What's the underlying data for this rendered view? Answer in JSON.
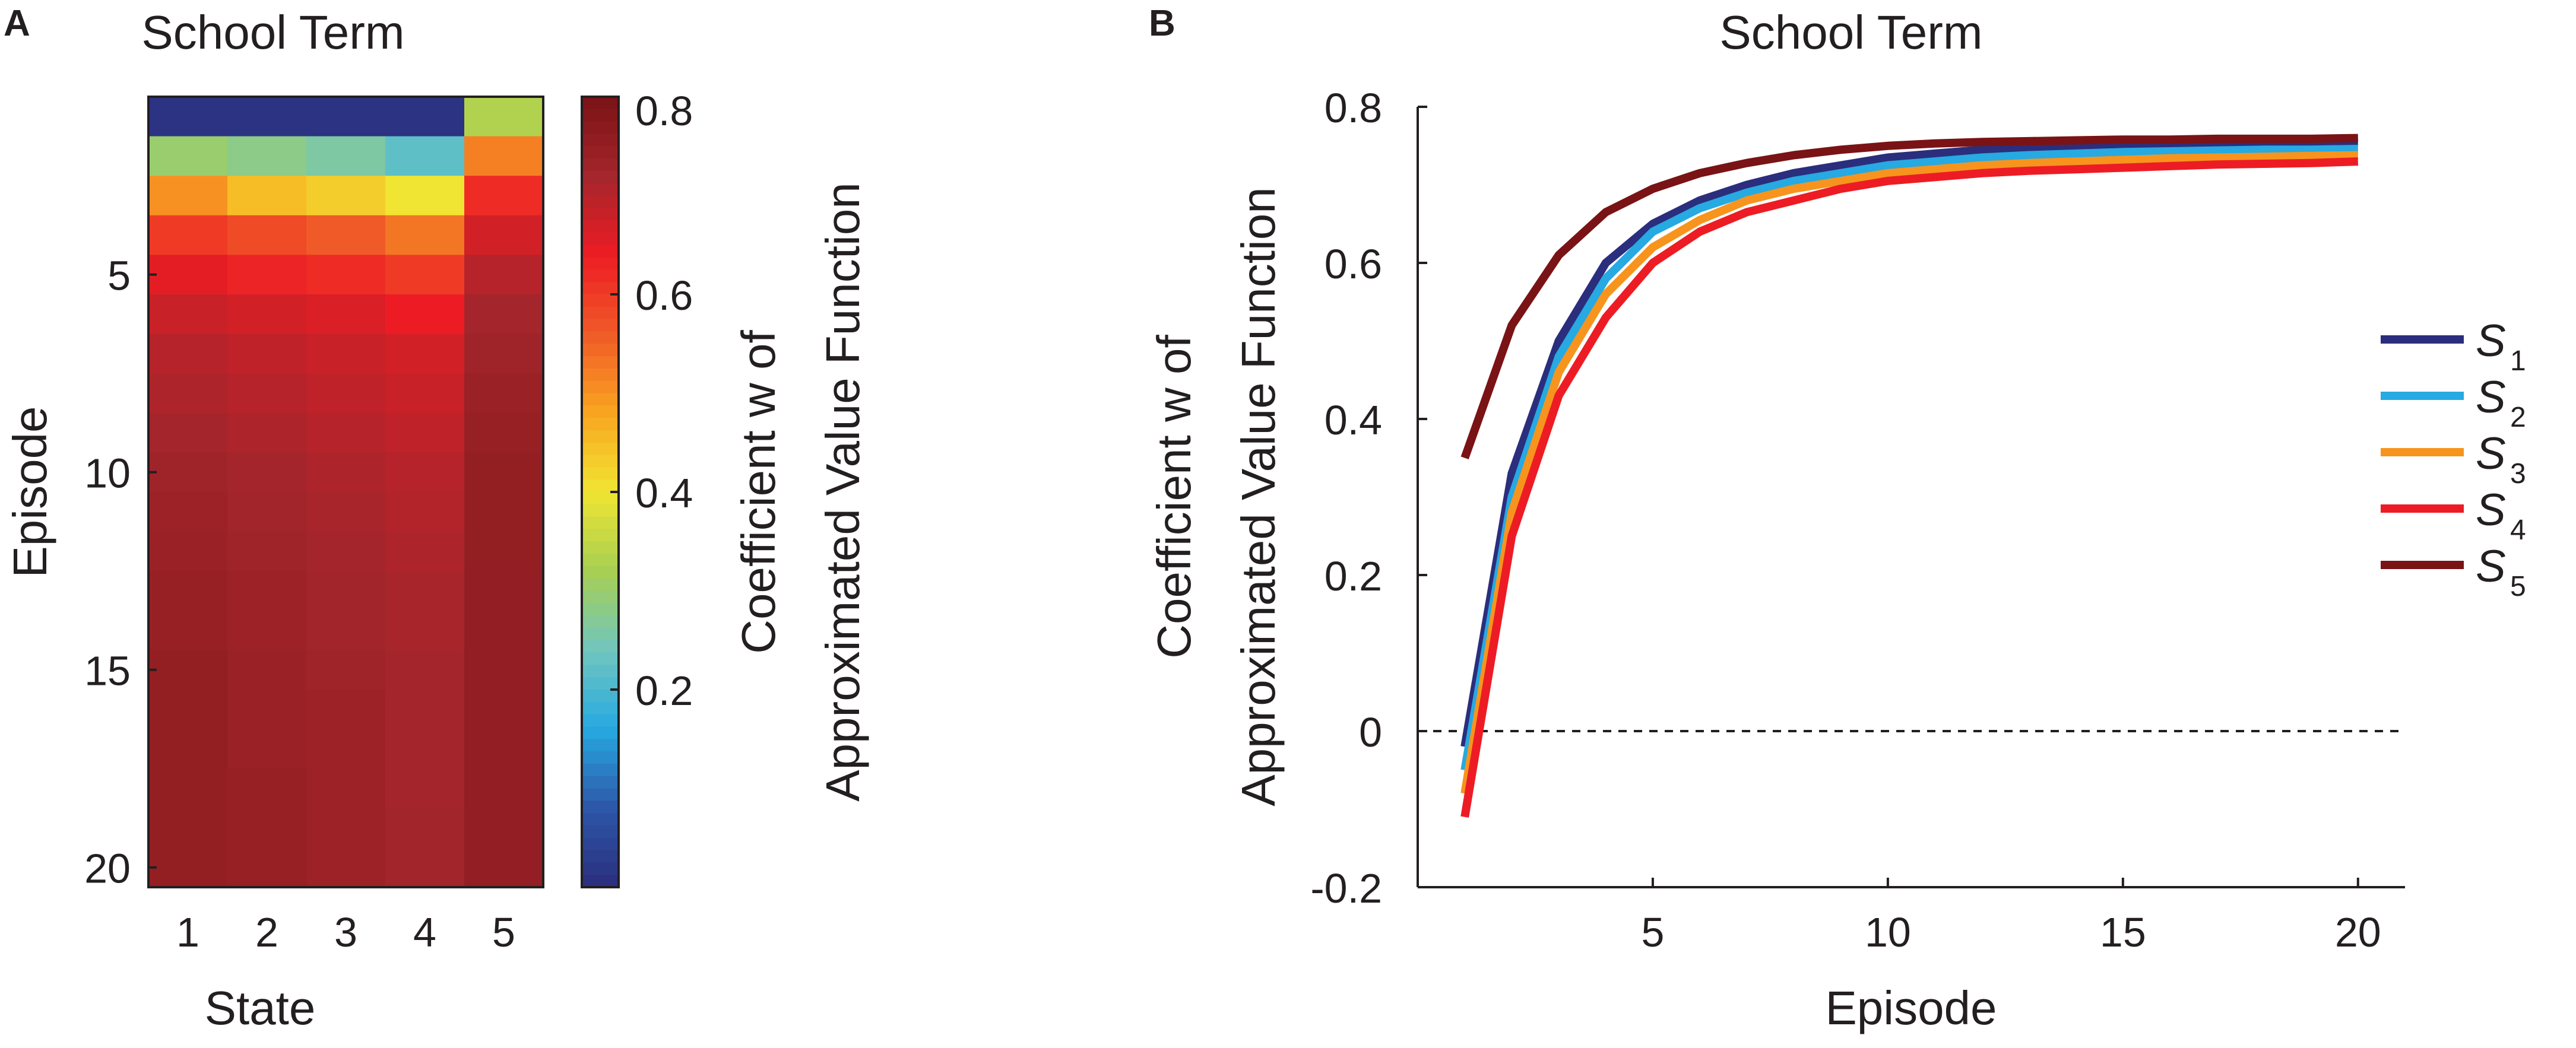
{
  "figure": {
    "panel_a_letter": "A",
    "panel_b_letter": "B"
  },
  "chart_data": [
    {
      "type": "heatmap",
      "title": "School Term",
      "xlabel": "State",
      "ylabel": "Episode",
      "x_categories": [
        "1",
        "2",
        "3",
        "4",
        "5"
      ],
      "y_categories": [
        "1",
        "2",
        "3",
        "4",
        "5",
        "6",
        "7",
        "8",
        "9",
        "10",
        "11",
        "12",
        "13",
        "14",
        "15",
        "16",
        "17",
        "18",
        "19",
        "20"
      ],
      "y_tick_labels": [
        "5",
        "10",
        "15",
        "20"
      ],
      "y_tick_values": [
        5,
        10,
        15,
        20
      ],
      "values": [
        [
          0.01,
          0.01,
          0.01,
          0.01,
          0.33
        ],
        [
          0.3,
          0.28,
          0.26,
          0.22,
          0.52
        ],
        [
          0.5,
          0.45,
          0.43,
          0.4,
          0.62
        ],
        [
          0.6,
          0.58,
          0.56,
          0.53,
          0.67
        ],
        [
          0.65,
          0.63,
          0.62,
          0.6,
          0.7
        ],
        [
          0.68,
          0.67,
          0.66,
          0.64,
          0.72
        ],
        [
          0.7,
          0.69,
          0.68,
          0.67,
          0.73
        ],
        [
          0.71,
          0.7,
          0.69,
          0.68,
          0.74
        ],
        [
          0.72,
          0.71,
          0.7,
          0.69,
          0.745
        ],
        [
          0.73,
          0.72,
          0.71,
          0.7,
          0.75
        ],
        [
          0.735,
          0.725,
          0.715,
          0.705,
          0.75
        ],
        [
          0.74,
          0.73,
          0.72,
          0.71,
          0.75
        ],
        [
          0.745,
          0.735,
          0.725,
          0.715,
          0.752
        ],
        [
          0.745,
          0.735,
          0.725,
          0.715,
          0.752
        ],
        [
          0.75,
          0.74,
          0.73,
          0.72,
          0.752
        ],
        [
          0.75,
          0.74,
          0.735,
          0.72,
          0.752
        ],
        [
          0.75,
          0.74,
          0.735,
          0.72,
          0.752
        ],
        [
          0.75,
          0.745,
          0.735,
          0.72,
          0.752
        ],
        [
          0.75,
          0.745,
          0.735,
          0.725,
          0.752
        ],
        [
          0.75,
          0.745,
          0.735,
          0.725,
          0.752
        ]
      ],
      "colorbar": {
        "range": [
          0,
          0.8
        ],
        "tick_labels": [
          "0.2",
          "0.4",
          "0.6",
          "0.8"
        ],
        "tick_values": [
          0.2,
          0.4,
          0.6,
          0.8
        ],
        "label_line1": "Coefficient w of",
        "label_line2": "Approximated Value Function"
      },
      "colormap": [
        "#2b2e7d",
        "#2d57a8",
        "#27a9e1",
        "#70c6be",
        "#a7cf52",
        "#f0e532",
        "#f9a520",
        "#f05a28",
        "#ed1c24",
        "#a4262c",
        "#7a1315"
      ]
    },
    {
      "type": "line",
      "title": "School Term",
      "xlabel": "Episode",
      "ylabel_line1": "Coefficient w of",
      "ylabel_line2": "Approximated Value Function",
      "xlim": [
        0,
        21
      ],
      "ylim": [
        -0.2,
        0.8
      ],
      "x_tick_labels": [
        "5",
        "10",
        "15",
        "20"
      ],
      "x_tick_values": [
        5,
        10,
        15,
        20
      ],
      "y_tick_labels": [
        "-0.2",
        "0",
        "0.2",
        "0.4",
        "0.6",
        "0.8"
      ],
      "y_tick_values": [
        -0.2,
        0,
        0.2,
        0.4,
        0.6,
        0.8
      ],
      "reference_line": {
        "y": 0,
        "style": "dashed"
      },
      "x": [
        1,
        2,
        3,
        4,
        5,
        6,
        7,
        8,
        9,
        10,
        11,
        12,
        13,
        14,
        15,
        16,
        17,
        18,
        19,
        20
      ],
      "series": [
        {
          "name": "S",
          "subscript": "1",
          "color": "#2b2e7d",
          "values": [
            -0.02,
            0.33,
            0.5,
            0.6,
            0.65,
            0.68,
            0.7,
            0.715,
            0.725,
            0.735,
            0.74,
            0.745,
            0.748,
            0.75,
            0.751,
            0.752,
            0.753,
            0.753,
            0.754,
            0.754
          ]
        },
        {
          "name": "S",
          "subscript": "2",
          "color": "#27a9e1",
          "values": [
            -0.05,
            0.3,
            0.48,
            0.58,
            0.64,
            0.67,
            0.69,
            0.705,
            0.715,
            0.725,
            0.73,
            0.735,
            0.738,
            0.74,
            0.742,
            0.743,
            0.744,
            0.745,
            0.745,
            0.746
          ]
        },
        {
          "name": "S",
          "subscript": "3",
          "color": "#f7941d",
          "values": [
            -0.08,
            0.28,
            0.46,
            0.56,
            0.62,
            0.655,
            0.68,
            0.695,
            0.705,
            0.715,
            0.72,
            0.725,
            0.728,
            0.73,
            0.732,
            0.734,
            0.735,
            0.736,
            0.737,
            0.738
          ]
        },
        {
          "name": "S",
          "subscript": "4",
          "color": "#ed1c24",
          "values": [
            -0.11,
            0.25,
            0.43,
            0.53,
            0.6,
            0.64,
            0.665,
            0.68,
            0.695,
            0.705,
            0.71,
            0.715,
            0.718,
            0.72,
            0.722,
            0.724,
            0.726,
            0.727,
            0.728,
            0.73
          ]
        },
        {
          "name": "S",
          "subscript": "5",
          "color": "#7a1315",
          "values": [
            0.35,
            0.52,
            0.61,
            0.665,
            0.695,
            0.715,
            0.728,
            0.738,
            0.745,
            0.75,
            0.753,
            0.755,
            0.756,
            0.757,
            0.758,
            0.758,
            0.759,
            0.759,
            0.759,
            0.76
          ]
        }
      ]
    }
  ]
}
